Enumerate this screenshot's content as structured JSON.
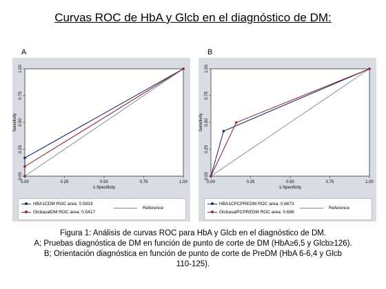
{
  "title": "Curvas ROC de HbA y Glcb en el diagnóstico de DM:",
  "panels": [
    {
      "letter": "A"
    },
    {
      "letter": "B"
    }
  ],
  "caption": {
    "line1": "Figura 1: Análisis de curvas ROC para HbA y Glcb en el diagnóstico de DM.",
    "line2": "A; Pruebas diagnóstica de DM en función de punto de corte de DM (HbA≥6,5 y Glcb≥126).",
    "line3": "B; Orientación diagnóstica en función de punto de corte de PreDM (HbA 6-6,4 y Glcb",
    "line4": "110-125)."
  },
  "colors": {
    "panel_bg": "#d8dde4",
    "series_navy": "#1f2f6b",
    "series_red": "#8e2c34",
    "reference": "#6c8a92"
  },
  "chart_data": [
    {
      "type": "line",
      "panel": "A",
      "xlabel": "1-Specificity",
      "ylabel": "Sensitivity",
      "xlim": [
        0,
        1
      ],
      "ylim": [
        0,
        1
      ],
      "xticks": [
        "0.00",
        "0.25",
        "0.50",
        "0.75",
        "1.00"
      ],
      "yticks": [
        "0.00",
        "0.25",
        "0.50",
        "0.75",
        "1.00"
      ],
      "grid": false,
      "legend_position": "bottom",
      "series": [
        {
          "name": "HBA1CDM ROC area: 0.5833",
          "color": "#1f2f6b",
          "x": [
            0,
            0,
            1
          ],
          "y": [
            0,
            0.17,
            1
          ]
        },
        {
          "name": "GlcbasalDM ROC area: 0.5417",
          "color": "#8e2c34",
          "x": [
            0,
            0,
            1
          ],
          "y": [
            0,
            0.09,
            1
          ]
        }
      ],
      "reference": {
        "name": "Reference",
        "x": [
          0,
          1
        ],
        "y": [
          0,
          1
        ]
      }
    },
    {
      "type": "line",
      "panel": "B",
      "xlabel": "1-Specificity",
      "ylabel": "Sensitivity",
      "xlim": [
        0,
        1
      ],
      "ylim": [
        0,
        1
      ],
      "xticks": [
        "0.00",
        "0.25",
        "0.50",
        "0.75",
        "1.00"
      ],
      "yticks": [
        "0.00",
        "0.25",
        "0.50",
        "0.75",
        "1.00"
      ],
      "grid": false,
      "legend_position": "bottom",
      "series": [
        {
          "name": "HBA1CPCPREDM ROC area: 0.6673",
          "color": "#1f2f6b",
          "x": [
            0,
            0.08,
            1
          ],
          "y": [
            0,
            0.42,
            1
          ]
        },
        {
          "name": "GlcbasalPCPREDM ROC area: 0.668",
          "color": "#8e2c34",
          "x": [
            0,
            0.16,
            1
          ],
          "y": [
            0,
            0.5,
            1
          ]
        }
      ],
      "reference": {
        "name": "Reference",
        "x": [
          0,
          1
        ],
        "y": [
          0,
          1
        ]
      }
    }
  ]
}
